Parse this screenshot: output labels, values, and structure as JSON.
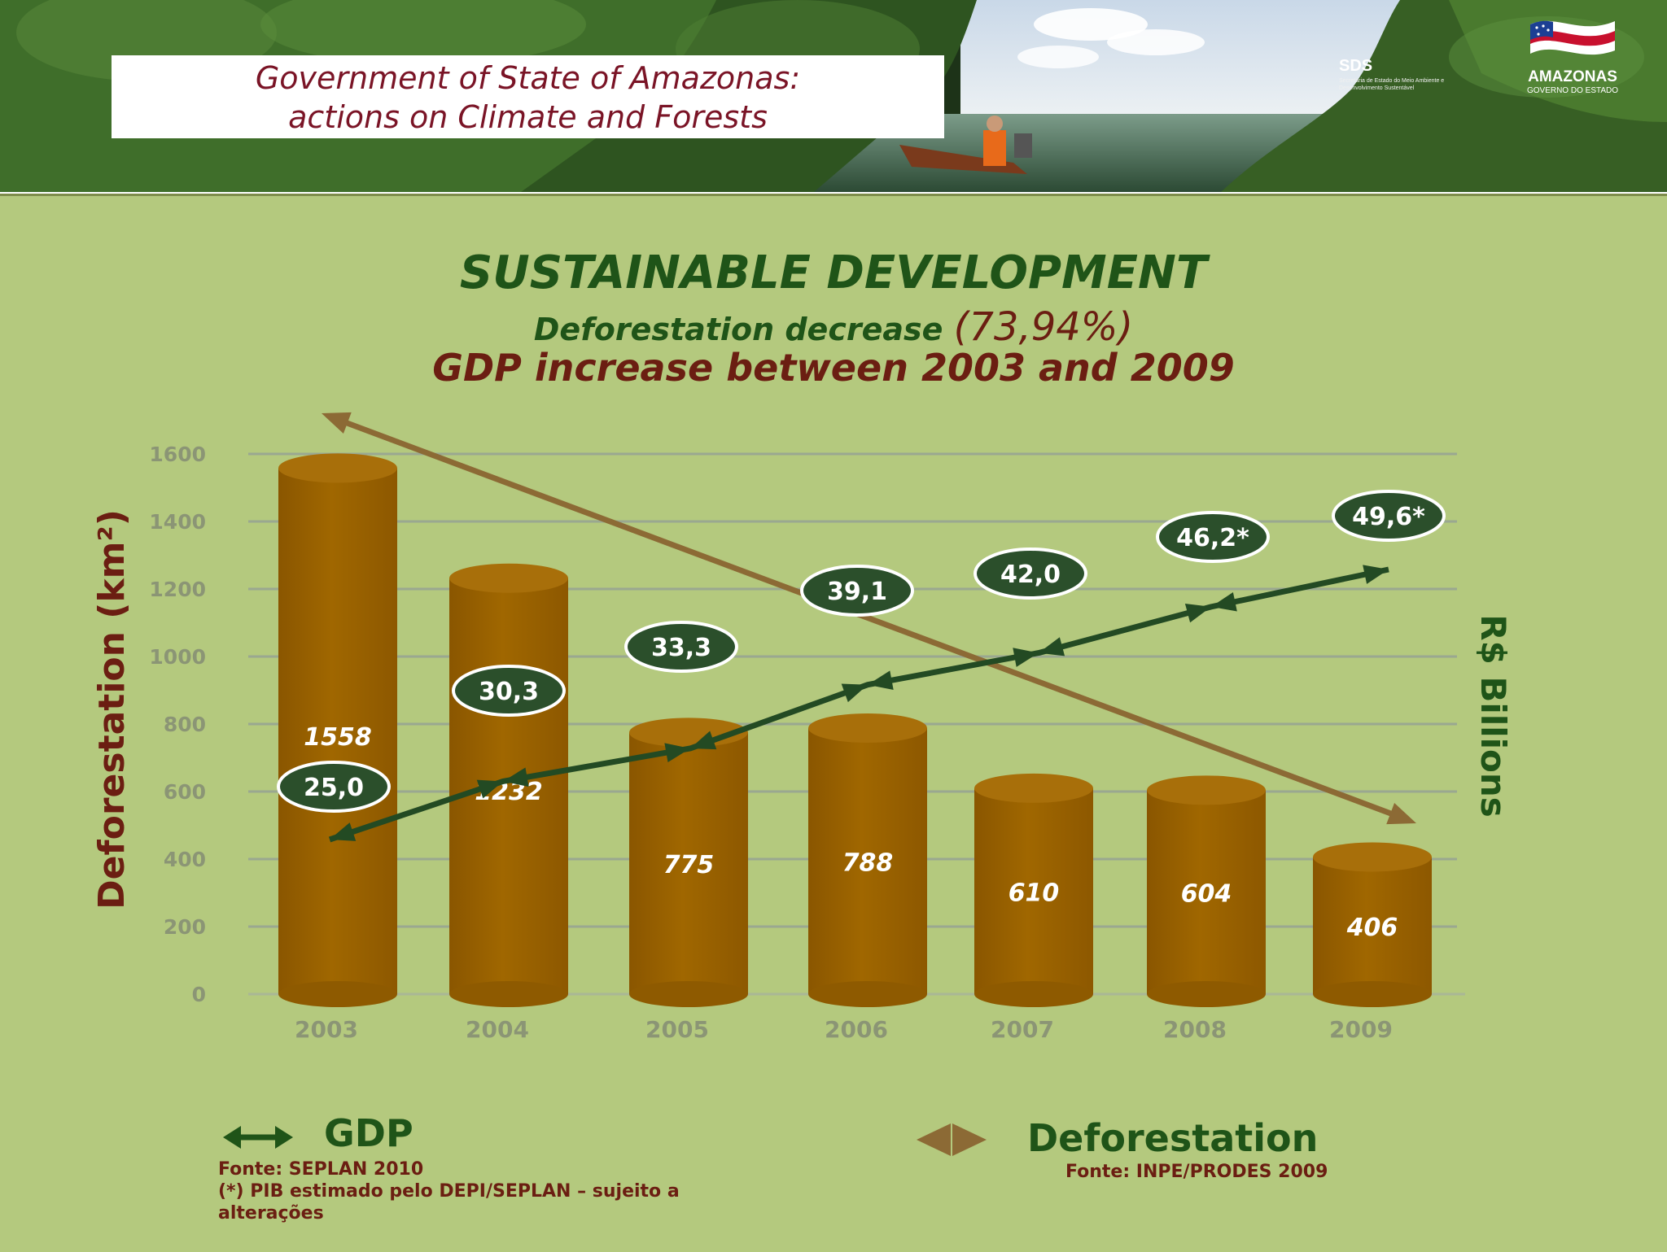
{
  "header": {
    "title_line1": "Government of State of Amazonas:",
    "title_line2": "actions on Climate and Forests"
  },
  "logos": {
    "sds_name": "SDS",
    "sds_description": "Secretaria de Estado do Meio Ambiente e Desenvolvimento Sustentável",
    "state_name": "AMAZONAS",
    "state_subtitle": "GOVERNO DO ESTADO"
  },
  "colors": {
    "panel_background": "#b4c97e",
    "bar_fill": "#9a6200",
    "bar_top": "#a86f0a",
    "gdp_line": "#234a23",
    "gdp_bubble": "#2b4f2b",
    "deforestation_trend": "#8c6a35",
    "title_green": "#1f5418",
    "title_red": "#6b1e12"
  },
  "chart_data": {
    "type": "bar",
    "title": "SUSTAINABLE DEVELOPMENT",
    "subtitle_main": "Deforestation decrease",
    "subtitle_percent": "(73,94%)",
    "subtitle_line2": "GDP increase between 2003 and 2009",
    "ylabel": "Deforestation (km²)",
    "y2label": "R$ Billions",
    "categories": [
      "2003",
      "2004",
      "2005",
      "2006",
      "2007",
      "2008",
      "2009"
    ],
    "ylim": [
      0,
      1600
    ],
    "yticks": [
      "0",
      "200",
      "400",
      "600",
      "800",
      "1000",
      "1200",
      "1400",
      "1600"
    ],
    "grid": true,
    "series": [
      {
        "name": "Deforestation",
        "type": "bar",
        "values": [
          1558,
          1232,
          775,
          788,
          610,
          604,
          406
        ],
        "labels": [
          "1558",
          "1232",
          "775",
          "788",
          "610",
          "604",
          "406"
        ]
      },
      {
        "name": "GDP",
        "type": "line",
        "values": [
          25.0,
          30.3,
          33.3,
          39.1,
          42.0,
          46.2,
          49.6
        ],
        "labels": [
          "25,0",
          "30,3",
          "33,3",
          "39,1",
          "42,0",
          "46,2*",
          "49,6*"
        ]
      }
    ],
    "trend": {
      "name": "Deforestation",
      "direction": "decreasing"
    }
  },
  "legend": {
    "gdp_label": "GDP",
    "gdp_source": "Fonte:  SEPLAN 2010",
    "gdp_note": "(*) PIB estimado pelo DEPI/SEPLAN – sujeito a alterações",
    "deforestation_label": "Deforestation",
    "deforestation_source": "Fonte:  INPE/PRODES 2009",
    "position": "bottom"
  }
}
